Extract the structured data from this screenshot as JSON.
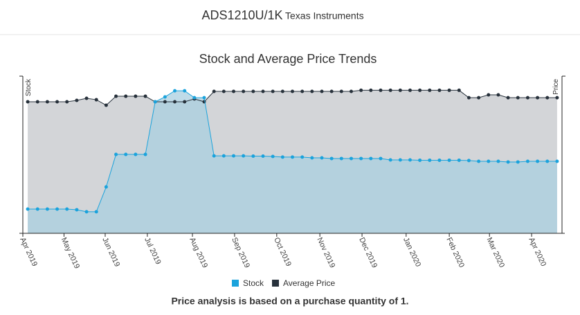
{
  "header": {
    "title": "ADS1210U/1K",
    "subtitle": "Texas Instruments"
  },
  "chart_data": {
    "type": "area-line",
    "title": "Stock and Average Price Trends",
    "ylabel": "Stock",
    "y2label": "Price",
    "x": [
      0,
      1,
      2,
      3,
      4,
      5,
      6,
      7,
      8,
      9,
      10,
      11,
      12,
      13,
      14,
      15,
      16,
      17,
      18,
      19,
      20,
      21,
      22,
      23,
      24,
      25,
      26,
      27,
      28,
      29,
      30,
      31,
      32,
      33,
      34,
      35,
      36,
      37,
      38,
      39,
      40,
      41,
      42,
      43,
      44,
      45,
      46,
      47,
      48,
      49,
      50,
      51,
      52,
      53,
      54
    ],
    "xlim": [
      -0.5,
      54.5
    ],
    "xticks": [
      {
        "value": -0.5,
        "label": "Apr 2019"
      },
      {
        "value": 3.7,
        "label": "May 2019"
      },
      {
        "value": 7.9,
        "label": "Jun 2019"
      },
      {
        "value": 12.2,
        "label": "Jul 2019"
      },
      {
        "value": 16.8,
        "label": "Aug 2019"
      },
      {
        "value": 21.1,
        "label": "Sep 2019"
      },
      {
        "value": 25.4,
        "label": "Oct 2019"
      },
      {
        "value": 29.8,
        "label": "Nov 2019"
      },
      {
        "value": 34.1,
        "label": "Dec 2019"
      },
      {
        "value": 38.6,
        "label": "Jan 2020"
      },
      {
        "value": 43.0,
        "label": "Feb 2020"
      },
      {
        "value": 47.1,
        "label": "Mar 2020"
      },
      {
        "value": 51.4,
        "label": "Apr 2020"
      }
    ],
    "ylim": [
      0,
      100
    ],
    "y2lim": [
      0,
      100
    ],
    "series": [
      {
        "name": "Stock",
        "color": "#1ba3dc",
        "fill": "#a9cfe0",
        "axis": "y",
        "values": [
          15.4,
          15.4,
          15.4,
          15.4,
          15.4,
          15.0,
          13.7,
          13.7,
          29.5,
          50.2,
          50.2,
          50.2,
          50.2,
          83.7,
          86.8,
          90.7,
          90.7,
          86.3,
          86.3,
          49.3,
          49.3,
          49.3,
          49.3,
          49.1,
          49.1,
          48.9,
          48.5,
          48.5,
          48.5,
          48.0,
          48.0,
          47.6,
          47.6,
          47.6,
          47.6,
          47.6,
          47.6,
          46.7,
          46.7,
          46.7,
          46.5,
          46.5,
          46.5,
          46.5,
          46.5,
          46.3,
          45.8,
          45.8,
          45.8,
          45.4,
          45.4,
          45.8,
          45.8,
          45.8,
          45.8
        ]
      },
      {
        "name": "Average Price",
        "color": "#27313b",
        "fill": "#d3d5d8",
        "axis": "y2",
        "values": [
          83.7,
          83.7,
          83.7,
          83.7,
          83.7,
          84.6,
          85.9,
          85.0,
          81.5,
          87.2,
          87.2,
          87.2,
          87.2,
          83.7,
          83.7,
          83.7,
          83.7,
          85.5,
          83.7,
          90.3,
          90.3,
          90.3,
          90.3,
          90.3,
          90.3,
          90.3,
          90.3,
          90.3,
          90.3,
          90.3,
          90.3,
          90.3,
          90.3,
          90.3,
          91.0,
          91.0,
          91.0,
          91.0,
          91.0,
          91.0,
          91.0,
          91.0,
          91.0,
          91.0,
          91.0,
          86.3,
          86.3,
          88.1,
          88.1,
          86.3,
          86.3,
          86.3,
          86.3,
          86.3,
          86.3
        ]
      }
    ],
    "footnote": "Price analysis is based on a purchase quantity of 1."
  }
}
